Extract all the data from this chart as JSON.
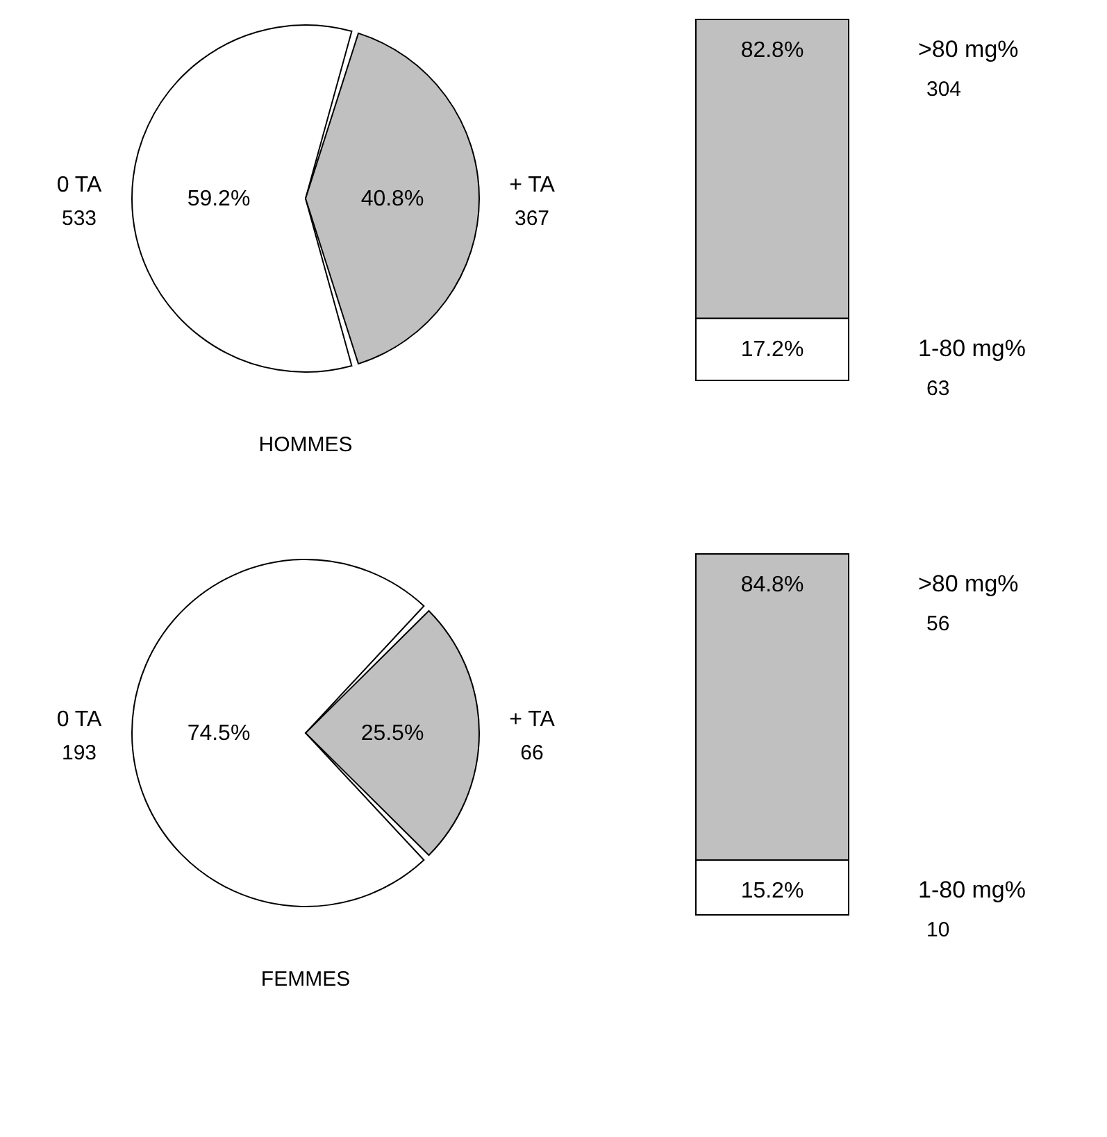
{
  "chart_data": [
    {
      "type": "pie",
      "title": "HOMMES",
      "categories": [
        "0 TA",
        "+ TA"
      ],
      "values": [
        59.2,
        40.8
      ],
      "value_labels": [
        "59.2%",
        "40.8%"
      ],
      "colors": [
        "#ffffff",
        "#c0c0c0"
      ],
      "annotations": [
        "533",
        "367"
      ]
    },
    {
      "type": "bar",
      "stacked": true,
      "categories": [
        null
      ],
      "series": [
        {
          "name": "1-80 mg%",
          "color": "#ffffff",
          "values": [
            17.2
          ],
          "value_labels": [
            "17.2%"
          ]
        },
        {
          "name": ">80 mg%",
          "color": "#c0c0c0",
          "values": [
            82.8
          ],
          "value_labels": [
            "82.8%"
          ]
        }
      ],
      "annotations": [
        "63",
        "304"
      ]
    },
    {
      "type": "pie",
      "title": "FEMMES",
      "categories": [
        "0 TA",
        "+ TA"
      ],
      "values": [
        74.5,
        25.5
      ],
      "value_labels": [
        "74.5%",
        "25.5%"
      ],
      "colors": [
        "#ffffff",
        "#c0c0c0"
      ],
      "annotations": [
        "193",
        "66"
      ]
    },
    {
      "type": "bar",
      "stacked": true,
      "categories": [
        null
      ],
      "series": [
        {
          "name": "1-80 mg%",
          "color": "#ffffff",
          "values": [
            15.2
          ],
          "value_labels": [
            "15.2%"
          ]
        },
        {
          "name": ">80 mg%",
          "color": "#c0c0c0",
          "values": [
            84.8
          ],
          "value_labels": [
            "84.8%"
          ]
        }
      ],
      "annotations": [
        "10",
        "56"
      ]
    }
  ]
}
